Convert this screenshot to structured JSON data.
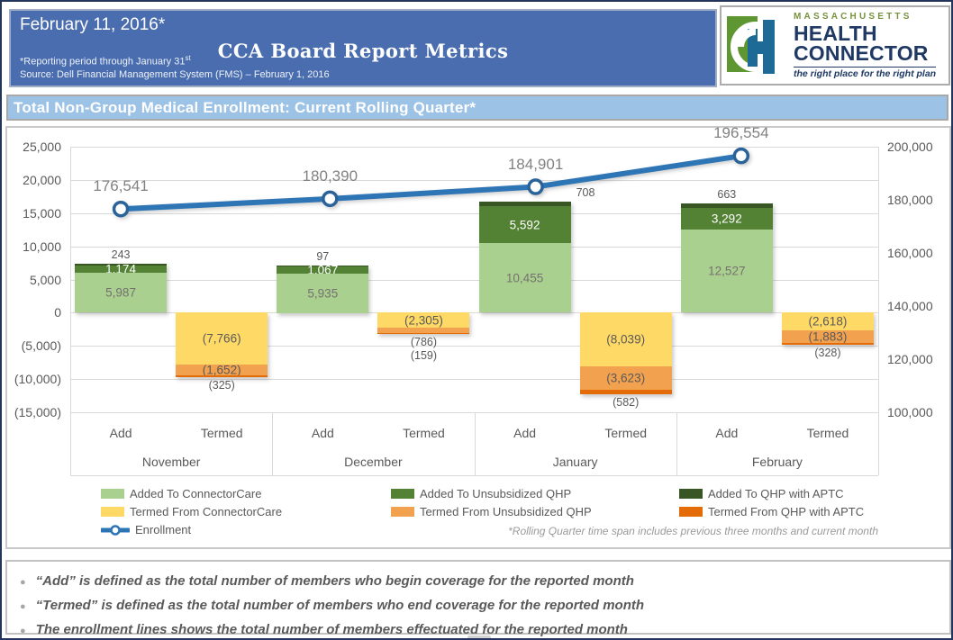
{
  "header": {
    "date": "February 11, 2016*",
    "title": "CCA Board Report Metrics",
    "reporting_note": "*Reporting period through January 31",
    "reporting_note_sup": "st",
    "source_note": "Source: Dell Financial Management System (FMS) – February 1, 2016"
  },
  "logo": {
    "region": "MASSACHUSETTS",
    "name_line1": "HEALTH",
    "name_line2": "CONNECTOR",
    "tagline": "the right place for the right plan",
    "green": "#76923C",
    "navy": "#1F3864",
    "icon_blue": "#1D6A96",
    "icon_green": "#5E9732"
  },
  "section_title": "Total Non-Group Medical Enrollment: Current Rolling Quarter*",
  "chart_data": {
    "type": "combo: stacked bar + line",
    "title": "Total Non-Group Medical Enrollment: Current Rolling Quarter*",
    "months": [
      "November",
      "December",
      "January",
      "February"
    ],
    "column_labels": [
      "Add",
      "Termed"
    ],
    "left_axis": {
      "min": -15000,
      "max": 25000,
      "step": 5000,
      "tick_labels": [
        "25,000",
        "20,000",
        "15,000",
        "10,000",
        "5,000",
        "0",
        "(5,000)",
        "(10,000)",
        "(15,000)"
      ]
    },
    "right_axis": {
      "min": 100000,
      "max": 200000,
      "step": 20000,
      "tick_labels": [
        "200,000",
        "180,000",
        "160,000",
        "140,000",
        "120,000",
        "100,000"
      ]
    },
    "grid": true,
    "legend_position": "bottom",
    "series": [
      {
        "name": "Added To ConnectorCare",
        "color": "#A9D08E",
        "values": [
          5987,
          5935,
          10455,
          12527
        ]
      },
      {
        "name": "Added To Unsubsidized QHP",
        "color": "#548235",
        "values": [
          1174,
          1067,
          5592,
          3292
        ]
      },
      {
        "name": "Added To QHP with APTC",
        "color": "#375623",
        "values": [
          243,
          97,
          708,
          663
        ]
      },
      {
        "name": "Termed From ConnectorCare",
        "color": "#FFD966",
        "values": [
          -7766,
          -2305,
          -8039,
          -2618
        ]
      },
      {
        "name": "Termed From Unsubsidized QHP",
        "color": "#F2A24E",
        "values": [
          -1652,
          -786,
          -3623,
          -1883
        ]
      },
      {
        "name": "Termed From QHP with APTC",
        "color": "#E36C09",
        "values": [
          -325,
          -159,
          -582,
          -328
        ]
      },
      {
        "name": "Enrollment",
        "type": "line",
        "color": "#2E75B6",
        "values": [
          176541,
          180390,
          184901,
          196554
        ]
      }
    ],
    "footnote": "*Rolling Quarter time span includes previous three months and current month"
  },
  "bullets": [
    "“Add” is defined as the total number of members who begin coverage for the reported month",
    "“Termed” is defined as the total number of members who end coverage for the reported month",
    "The enrollment lines shows the total number of members effectuated for the reported month"
  ]
}
